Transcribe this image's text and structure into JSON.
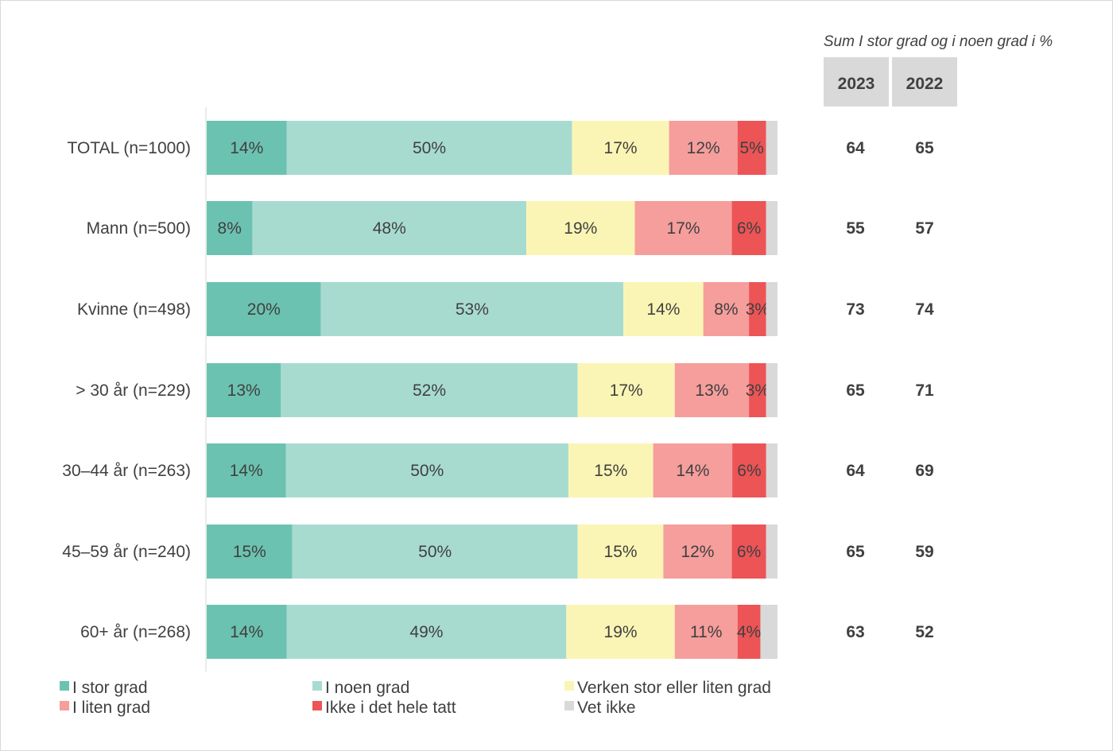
{
  "colors": {
    "I stor grad": "#6cc2b1",
    "I noen grad": "#a8dbd0",
    "Verken stor eller liten grad": "#fbf5b5",
    "I liten grad": "#f59e9c",
    "Ikke i det hele tatt": "#ec5456",
    "Vet ikke": "#d9d9d9",
    "header_box": "#d9d9d9",
    "axis": "#d9d9d9",
    "text": "#404040"
  },
  "summary": {
    "note": "Sum I stor grad og i noen grad i %",
    "year_headers": [
      "2023",
      "2022"
    ]
  },
  "chart_data": {
    "type": "bar",
    "orientation": "horizontal",
    "stacked": true,
    "xlim": [
      0,
      100
    ],
    "categories": [
      "TOTAL (n=1000)",
      "Mann (n=500)",
      "Kvinne (n=498)",
      "> 30 år (n=229)",
      "30–44 år (n=263)",
      "45–59 år (n=240)",
      "60+ år (n=268)"
    ],
    "series": [
      {
        "name": "I stor grad",
        "values": [
          14,
          8,
          20,
          13,
          14,
          15,
          14
        ],
        "labels": [
          "14%",
          "8%",
          "20%",
          "13%",
          "14%",
          "15%",
          "14%"
        ]
      },
      {
        "name": "I noen grad",
        "values": [
          50,
          48,
          53,
          52,
          50,
          50,
          49
        ],
        "labels": [
          "50%",
          "48%",
          "53%",
          "52%",
          "50%",
          "50%",
          "49%"
        ]
      },
      {
        "name": "Verken stor eller liten grad",
        "values": [
          17,
          19,
          14,
          17,
          15,
          15,
          19
        ],
        "labels": [
          "17%",
          "19%",
          "14%",
          "17%",
          "15%",
          "15%",
          "19%"
        ]
      },
      {
        "name": "I liten grad",
        "values": [
          12,
          17,
          8,
          13,
          14,
          12,
          11
        ],
        "labels": [
          "12%",
          "17%",
          "8%",
          "13%",
          "14%",
          "12%",
          "11%"
        ]
      },
      {
        "name": "Ikke i det hele tatt",
        "values": [
          5,
          6,
          3,
          3,
          6,
          6,
          4
        ],
        "labels": [
          "5%",
          "6%",
          "3%",
          "3%",
          "6%",
          "6%",
          "4%"
        ]
      },
      {
        "name": "Vet ikke",
        "values": [
          2,
          2,
          2,
          2,
          2,
          2,
          3
        ],
        "labels": [
          "",
          "",
          "",
          "",
          "",
          "",
          ""
        ]
      }
    ],
    "sum_2023": [
      "64",
      "55",
      "73",
      "65",
      "64",
      "65",
      "63"
    ],
    "sum_2022": [
      "65",
      "57",
      "74",
      "71",
      "69",
      "59",
      "52"
    ],
    "legend": [
      "I stor grad",
      "I noen grad",
      "Verken stor eller liten grad",
      "I liten grad",
      "Ikke i det hele tatt",
      "Vet ikke"
    ],
    "legend_position": "bottom"
  }
}
